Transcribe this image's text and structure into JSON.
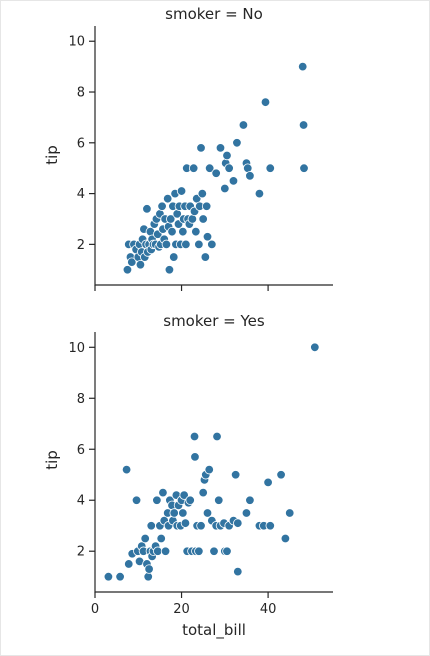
{
  "chart_data": [
    {
      "type": "scatter",
      "title": "smoker = No",
      "xlabel": "",
      "ylabel": "tip",
      "xlim": [
        0,
        55
      ],
      "ylim": [
        0.4,
        10.6
      ],
      "xticks": [
        0,
        20,
        40
      ],
      "yticks": [
        2,
        4,
        6,
        8,
        10
      ],
      "xtick_labels_visible": false,
      "grid": false,
      "color": "#3274a1",
      "points": [
        {
          "x": 7.5,
          "y": 1.0
        },
        {
          "x": 7.8,
          "y": 2.0
        },
        {
          "x": 8.2,
          "y": 1.5
        },
        {
          "x": 8.5,
          "y": 1.3
        },
        {
          "x": 9.0,
          "y": 2.0
        },
        {
          "x": 9.5,
          "y": 1.8
        },
        {
          "x": 10.0,
          "y": 1.5
        },
        {
          "x": 10.3,
          "y": 2.0
        },
        {
          "x": 10.5,
          "y": 1.2
        },
        {
          "x": 10.8,
          "y": 1.7
        },
        {
          "x": 11.0,
          "y": 2.2
        },
        {
          "x": 11.3,
          "y": 2.6
        },
        {
          "x": 11.5,
          "y": 1.5
        },
        {
          "x": 11.8,
          "y": 2.0
        },
        {
          "x": 12.0,
          "y": 3.4
        },
        {
          "x": 12.2,
          "y": 1.7
        },
        {
          "x": 12.5,
          "y": 2.0
        },
        {
          "x": 12.8,
          "y": 2.5
        },
        {
          "x": 13.0,
          "y": 1.8
        },
        {
          "x": 13.2,
          "y": 2.2
        },
        {
          "x": 13.5,
          "y": 2.0
        },
        {
          "x": 13.7,
          "y": 2.8
        },
        {
          "x": 14.0,
          "y": 2.0
        },
        {
          "x": 14.2,
          "y": 3.0
        },
        {
          "x": 14.5,
          "y": 2.4
        },
        {
          "x": 14.8,
          "y": 1.9
        },
        {
          "x": 15.0,
          "y": 3.2
        },
        {
          "x": 15.2,
          "y": 2.0
        },
        {
          "x": 15.5,
          "y": 3.5
        },
        {
          "x": 15.7,
          "y": 2.6
        },
        {
          "x": 16.0,
          "y": 2.2
        },
        {
          "x": 16.2,
          "y": 3.0
        },
        {
          "x": 16.5,
          "y": 2.0
        },
        {
          "x": 16.8,
          "y": 3.8
        },
        {
          "x": 17.0,
          "y": 2.7
        },
        {
          "x": 17.2,
          "y": 1.0
        },
        {
          "x": 17.5,
          "y": 3.0
        },
        {
          "x": 17.8,
          "y": 2.5
        },
        {
          "x": 18.0,
          "y": 3.5
        },
        {
          "x": 18.2,
          "y": 1.5
        },
        {
          "x": 18.5,
          "y": 4.0
        },
        {
          "x": 18.7,
          "y": 2.0
        },
        {
          "x": 19.0,
          "y": 3.2
        },
        {
          "x": 19.3,
          "y": 2.8
        },
        {
          "x": 19.5,
          "y": 3.5
        },
        {
          "x": 19.8,
          "y": 2.0
        },
        {
          "x": 20.0,
          "y": 4.1
        },
        {
          "x": 20.3,
          "y": 2.5
        },
        {
          "x": 20.5,
          "y": 3.0
        },
        {
          "x": 20.8,
          "y": 3.5
        },
        {
          "x": 21.0,
          "y": 2.0
        },
        {
          "x": 21.2,
          "y": 5.0
        },
        {
          "x": 21.5,
          "y": 3.0
        },
        {
          "x": 21.8,
          "y": 2.8
        },
        {
          "x": 22.0,
          "y": 3.5
        },
        {
          "x": 22.5,
          "y": 3.0
        },
        {
          "x": 22.8,
          "y": 5.0
        },
        {
          "x": 23.0,
          "y": 3.3
        },
        {
          "x": 23.3,
          "y": 2.5
        },
        {
          "x": 23.5,
          "y": 3.8
        },
        {
          "x": 24.0,
          "y": 2.0
        },
        {
          "x": 24.2,
          "y": 3.5
        },
        {
          "x": 24.5,
          "y": 5.8
        },
        {
          "x": 24.8,
          "y": 4.0
        },
        {
          "x": 25.0,
          "y": 3.0
        },
        {
          "x": 25.5,
          "y": 1.5
        },
        {
          "x": 25.8,
          "y": 3.5
        },
        {
          "x": 26.0,
          "y": 2.3
        },
        {
          "x": 26.5,
          "y": 5.0
        },
        {
          "x": 27.0,
          "y": 2.0
        },
        {
          "x": 28.0,
          "y": 4.8
        },
        {
          "x": 29.0,
          "y": 5.8
        },
        {
          "x": 30.0,
          "y": 4.2
        },
        {
          "x": 30.2,
          "y": 5.2
        },
        {
          "x": 30.5,
          "y": 5.5
        },
        {
          "x": 31.0,
          "y": 5.0
        },
        {
          "x": 32.0,
          "y": 4.5
        },
        {
          "x": 32.8,
          "y": 6.0
        },
        {
          "x": 34.3,
          "y": 6.7
        },
        {
          "x": 35.0,
          "y": 5.2
        },
        {
          "x": 35.3,
          "y": 5.0
        },
        {
          "x": 35.8,
          "y": 4.7
        },
        {
          "x": 38.0,
          "y": 4.0
        },
        {
          "x": 39.4,
          "y": 7.6
        },
        {
          "x": 40.5,
          "y": 5.0
        },
        {
          "x": 48.0,
          "y": 9.0
        },
        {
          "x": 48.2,
          "y": 6.7
        },
        {
          "x": 48.3,
          "y": 5.0
        }
      ]
    },
    {
      "type": "scatter",
      "title": "smoker = Yes",
      "xlabel": "total_bill",
      "ylabel": "tip",
      "xlim": [
        0,
        55
      ],
      "ylim": [
        0.4,
        10.6
      ],
      "xticks": [
        0,
        20,
        40
      ],
      "yticks": [
        2,
        4,
        6,
        8,
        10
      ],
      "xtick_labels_visible": true,
      "grid": false,
      "color": "#3274a1",
      "points": [
        {
          "x": 3.1,
          "y": 1.0
        },
        {
          "x": 5.8,
          "y": 1.0
        },
        {
          "x": 7.3,
          "y": 5.2
        },
        {
          "x": 7.8,
          "y": 1.5
        },
        {
          "x": 8.6,
          "y": 1.9
        },
        {
          "x": 9.6,
          "y": 4.0
        },
        {
          "x": 9.9,
          "y": 2.0
        },
        {
          "x": 10.3,
          "y": 1.6
        },
        {
          "x": 10.8,
          "y": 2.2
        },
        {
          "x": 11.2,
          "y": 2.0
        },
        {
          "x": 11.6,
          "y": 2.5
        },
        {
          "x": 12.0,
          "y": 1.5
        },
        {
          "x": 12.3,
          "y": 1.0
        },
        {
          "x": 12.5,
          "y": 1.3
        },
        {
          "x": 12.8,
          "y": 2.0
        },
        {
          "x": 13.0,
          "y": 3.0
        },
        {
          "x": 13.2,
          "y": 1.8
        },
        {
          "x": 13.5,
          "y": 2.0
        },
        {
          "x": 14.0,
          "y": 2.2
        },
        {
          "x": 14.3,
          "y": 4.0
        },
        {
          "x": 14.5,
          "y": 2.0
        },
        {
          "x": 15.0,
          "y": 3.0
        },
        {
          "x": 15.3,
          "y": 2.5
        },
        {
          "x": 15.7,
          "y": 4.3
        },
        {
          "x": 16.0,
          "y": 3.2
        },
        {
          "x": 16.3,
          "y": 2.0
        },
        {
          "x": 16.8,
          "y": 3.5
        },
        {
          "x": 17.0,
          "y": 3.0
        },
        {
          "x": 17.3,
          "y": 4.0
        },
        {
          "x": 17.8,
          "y": 3.8
        },
        {
          "x": 18.0,
          "y": 3.2
        },
        {
          "x": 18.3,
          "y": 3.5
        },
        {
          "x": 18.8,
          "y": 4.2
        },
        {
          "x": 19.0,
          "y": 3.0
        },
        {
          "x": 19.3,
          "y": 3.8
        },
        {
          "x": 19.8,
          "y": 3.0
        },
        {
          "x": 20.0,
          "y": 4.0
        },
        {
          "x": 20.3,
          "y": 3.5
        },
        {
          "x": 20.6,
          "y": 4.2
        },
        {
          "x": 20.9,
          "y": 3.1
        },
        {
          "x": 21.3,
          "y": 2.0
        },
        {
          "x": 21.6,
          "y": 3.9
        },
        {
          "x": 22.0,
          "y": 4.0
        },
        {
          "x": 22.4,
          "y": 2.0
        },
        {
          "x": 23.0,
          "y": 6.5
        },
        {
          "x": 23.1,
          "y": 5.7
        },
        {
          "x": 23.3,
          "y": 2.0
        },
        {
          "x": 23.6,
          "y": 3.0
        },
        {
          "x": 24.0,
          "y": 2.0
        },
        {
          "x": 24.5,
          "y": 3.0
        },
        {
          "x": 25.0,
          "y": 4.3
        },
        {
          "x": 25.3,
          "y": 4.8
        },
        {
          "x": 25.6,
          "y": 5.0
        },
        {
          "x": 26.0,
          "y": 3.5
        },
        {
          "x": 26.4,
          "y": 5.2
        },
        {
          "x": 27.0,
          "y": 3.2
        },
        {
          "x": 27.5,
          "y": 2.0
        },
        {
          "x": 28.0,
          "y": 3.0
        },
        {
          "x": 28.2,
          "y": 6.5
        },
        {
          "x": 28.6,
          "y": 4.0
        },
        {
          "x": 29.0,
          "y": 3.0
        },
        {
          "x": 29.8,
          "y": 3.1
        },
        {
          "x": 30.0,
          "y": 2.0
        },
        {
          "x": 30.5,
          "y": 2.0
        },
        {
          "x": 31.0,
          "y": 3.0
        },
        {
          "x": 32.0,
          "y": 3.2
        },
        {
          "x": 32.5,
          "y": 5.0
        },
        {
          "x": 33.0,
          "y": 3.1
        },
        {
          "x": 33.0,
          "y": 1.2
        },
        {
          "x": 35.0,
          "y": 3.5
        },
        {
          "x": 35.8,
          "y": 4.0
        },
        {
          "x": 38.0,
          "y": 3.0
        },
        {
          "x": 39.0,
          "y": 3.0
        },
        {
          "x": 40.0,
          "y": 4.7
        },
        {
          "x": 40.5,
          "y": 3.0
        },
        {
          "x": 43.0,
          "y": 5.0
        },
        {
          "x": 44.0,
          "y": 2.5
        },
        {
          "x": 45.0,
          "y": 3.5
        },
        {
          "x": 50.8,
          "y": 10.0
        }
      ]
    }
  ]
}
